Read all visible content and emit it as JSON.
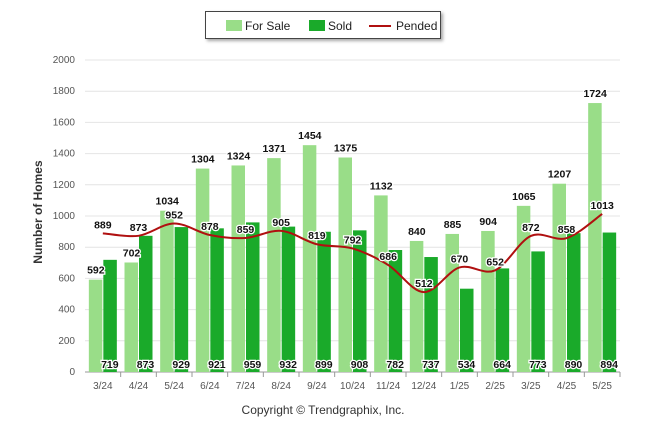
{
  "chart_data": {
    "type": "bar",
    "categories": [
      "3/24",
      "4/24",
      "5/24",
      "6/24",
      "7/24",
      "8/24",
      "9/24",
      "10/24",
      "11/24",
      "12/24",
      "1/25",
      "2/25",
      "3/25",
      "4/25",
      "5/25"
    ],
    "series": [
      {
        "name": "For Sale",
        "kind": "bar",
        "color": "#99dd88",
        "values": [
          592,
          702,
          1034,
          1304,
          1324,
          1371,
          1454,
          1375,
          1132,
          840,
          885,
          904,
          1065,
          1207,
          1724
        ]
      },
      {
        "name": "Sold",
        "kind": "bar",
        "color": "#1aaa2a",
        "values": [
          719,
          873,
          929,
          921,
          959,
          932,
          899,
          908,
          782,
          737,
          534,
          664,
          773,
          890,
          894
        ]
      },
      {
        "name": "Pended",
        "kind": "line",
        "color": "#b01010",
        "values": [
          889,
          873,
          952,
          878,
          859,
          905,
          819,
          792,
          686,
          512,
          670,
          652,
          872,
          858,
          1013
        ]
      }
    ],
    "ylabel": "Number of Homes",
    "ylim": [
      0,
      2000
    ],
    "yticks": [
      0,
      200,
      400,
      600,
      800,
      1000,
      1200,
      1400,
      1600,
      1800,
      2000
    ],
    "grid": true,
    "legend": "top-center"
  },
  "legend": {
    "for_sale": "For Sale",
    "sold": "Sold",
    "pended": "Pended"
  },
  "axis": {
    "ylabel": "Number of Homes"
  },
  "footer": {
    "copyright": "Copyright © Trendgraphix, Inc."
  }
}
